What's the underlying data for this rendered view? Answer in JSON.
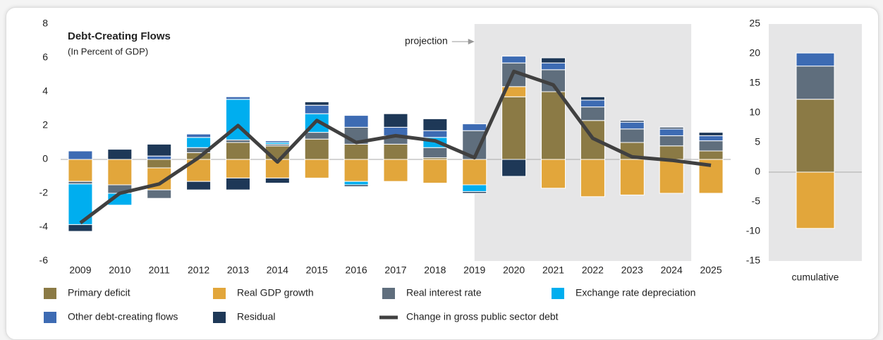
{
  "chart_data": [
    {
      "type": "bar",
      "stacked": true,
      "title": "Debt-Creating Flows",
      "subtitle": "(In Percent of GDP)",
      "annotation": "projection",
      "shaded_categories": [
        "2020",
        "2024"
      ],
      "categories": [
        "2009",
        "2010",
        "2011",
        "2012",
        "2013",
        "2014",
        "2015",
        "2016",
        "2017",
        "2018",
        "2019",
        "2020",
        "2021",
        "2022",
        "2023",
        "2024",
        "2025"
      ],
      "ylim": [
        -6,
        8
      ],
      "yticks": [
        -6,
        -4,
        -2,
        0,
        2,
        4,
        6,
        8
      ],
      "series": [
        {
          "name": "Primary deficit",
          "color": "#8b7a45",
          "values": [
            0,
            0,
            -0.5,
            0.4,
            1.0,
            0.8,
            1.2,
            0.9,
            0.9,
            0.1,
            0,
            3.7,
            4.0,
            2.3,
            1.0,
            0.8,
            0.5
          ]
        },
        {
          "name": "Real GDP growth",
          "color": "#e2a63b",
          "values": [
            -1.3,
            -1.5,
            -1.3,
            -1.3,
            -1.1,
            -1.1,
            -1.1,
            -1.3,
            -1.3,
            -1.4,
            -1.5,
            0.6,
            -1.7,
            -2.2,
            -2.1,
            -2.0,
            -2.0
          ]
        },
        {
          "name": "Real interest rate",
          "color": "#5f6e7d",
          "values": [
            -0.15,
            -0.5,
            -0.5,
            0.3,
            0.15,
            0.1,
            0.4,
            1.0,
            0.5,
            0.6,
            1.7,
            1.4,
            1.3,
            0.8,
            0.8,
            0.6,
            0.6
          ]
        },
        {
          "name": "Exchange rate depreciation",
          "color": "#00aeef",
          "values": [
            -2.4,
            -0.7,
            0,
            0.6,
            2.4,
            0.1,
            1.1,
            -0.2,
            0,
            0.6,
            -0.4,
            0,
            0,
            0,
            0,
            0,
            0
          ]
        },
        {
          "name": "Other debt-creating flows",
          "color": "#3d6bb3",
          "values": [
            0.5,
            0,
            0.2,
            0.2,
            0.15,
            0.1,
            0.5,
            0.7,
            0.5,
            0.4,
            0.4,
            0.4,
            0.4,
            0.4,
            0.4,
            0.4,
            0.3
          ]
        },
        {
          "name": "Residual",
          "color": "#1e3857",
          "values": [
            -0.4,
            0.6,
            0.7,
            -0.5,
            -0.7,
            -0.3,
            0.2,
            -0.1,
            0.8,
            0.7,
            -0.1,
            -1.0,
            0.3,
            0.2,
            0.1,
            0.1,
            0.2
          ]
        },
        {
          "name": "Change in gross public sector debt",
          "type": "line",
          "color": "#404040",
          "values": [
            -3.75,
            -2.0,
            -1.45,
            0.1,
            2.0,
            -0.15,
            2.3,
            1.0,
            1.4,
            1.1,
            0.1,
            5.2,
            4.4,
            1.25,
            0.15,
            -0.05,
            -0.35
          ]
        }
      ]
    },
    {
      "type": "bar",
      "stacked": true,
      "categories": [
        "cumulative"
      ],
      "ylim": [
        -15,
        25
      ],
      "yticks": [
        -15,
        -10,
        -5,
        0,
        5,
        10,
        15,
        20,
        25
      ],
      "series": [
        {
          "color": "#8b7a45",
          "values": [
            12.3
          ]
        },
        {
          "color": "#e2a63b",
          "values": [
            -9.5
          ]
        },
        {
          "color": "#5f6e7d",
          "values": [
            5.6
          ]
        },
        {
          "color": "#3d6bb3",
          "values": [
            2.2
          ]
        }
      ]
    }
  ]
}
